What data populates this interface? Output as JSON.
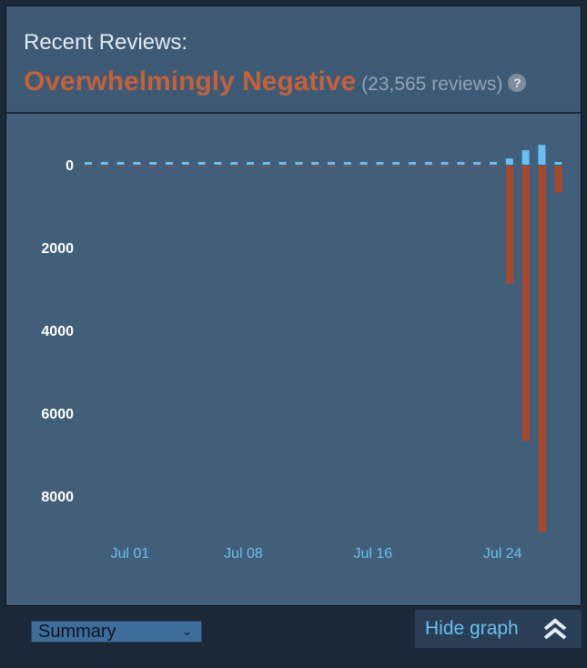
{
  "header": {
    "title": "Recent Reviews:",
    "rating": "Overwhelmingly Negative",
    "count": "(23,565 reviews)",
    "help": "?"
  },
  "chart_data": {
    "type": "bar",
    "ylabels": [
      "0",
      "2000",
      "4000",
      "6000",
      "8000"
    ],
    "xlabels": [
      "Jul 01",
      "Jul 08",
      "Jul 16",
      "Jul 24"
    ],
    "ylim": [
      -900,
      8900
    ],
    "days": 30,
    "xlabel_days": [
      2,
      9,
      17,
      25
    ],
    "positive": [
      25,
      25,
      25,
      25,
      25,
      25,
      25,
      25,
      25,
      25,
      25,
      25,
      25,
      25,
      25,
      25,
      25,
      25,
      25,
      25,
      25,
      25,
      25,
      25,
      25,
      25,
      150,
      350,
      480,
      25
    ],
    "negative": [
      20,
      20,
      20,
      20,
      20,
      20,
      20,
      20,
      20,
      20,
      20,
      20,
      20,
      20,
      20,
      20,
      20,
      20,
      20,
      20,
      20,
      20,
      20,
      20,
      20,
      20,
      2850,
      6650,
      8850,
      650
    ],
    "colors": {
      "positive": "#66c0f4",
      "negative": "#a8482a"
    }
  },
  "controls": {
    "view_select": "Summary",
    "hide_graph": "Hide graph"
  }
}
